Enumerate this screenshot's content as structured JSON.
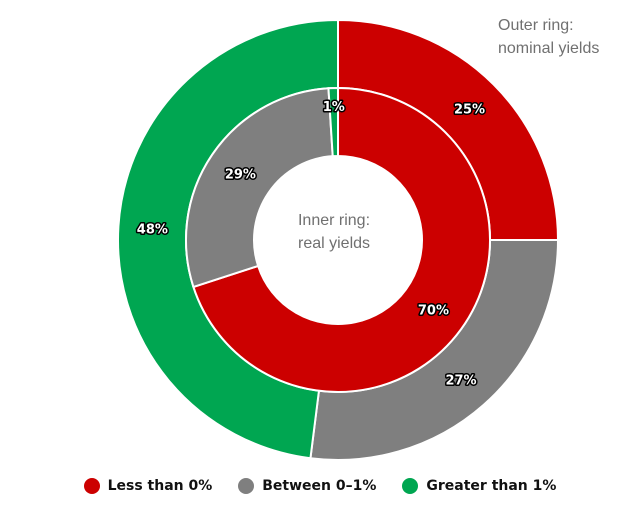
{
  "chart_data": {
    "type": "pie",
    "subtype": "nested-donut",
    "categories": [
      "Less than 0%",
      "Between 0-1%",
      "Greater than 1%"
    ],
    "colors": [
      "#cc0000",
      "#7f7f7f",
      "#00a651"
    ],
    "series": [
      {
        "ring": "outer",
        "values": [
          25,
          27,
          48
        ],
        "labels": [
          "25%",
          "27%",
          "48%"
        ]
      },
      {
        "ring": "inner",
        "values": [
          70,
          29,
          1
        ],
        "labels": [
          "70%",
          "29%",
          "1%"
        ]
      }
    ],
    "annotations": {
      "outer_line1": "Outer ring:",
      "outer_line2": "nominal yields",
      "inner_line1": "Inner ring:",
      "inner_line2": "real yields"
    },
    "legend": {
      "placement": "bottom",
      "items": [
        "Less than 0%",
        "Between 0–1%",
        "Greater than 1%"
      ]
    }
  }
}
